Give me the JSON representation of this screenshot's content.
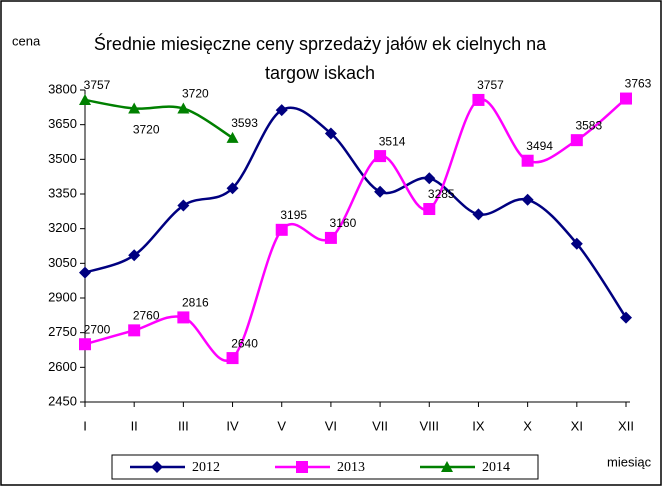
{
  "chart_data": {
    "type": "line",
    "title": "Średnie miesięczne ceny sprzedaży jałów ek cielnych na targow iskach",
    "y_label": "cena",
    "x_label": "miesiąc",
    "categories": [
      "I",
      "II",
      "III",
      "IV",
      "V",
      "VI",
      "VII",
      "VIII",
      "IX",
      "X",
      "XI",
      "XII"
    ],
    "series": [
      {
        "name": "2012",
        "color": "#000080",
        "marker": "diamond",
        "values": [
          3010,
          3085,
          3300,
          3375,
          3713,
          3612,
          3360,
          3418,
          3262,
          3325,
          3135,
          2815
        ]
      },
      {
        "name": "2013",
        "color": "#ff00ff",
        "marker": "square",
        "values": [
          2700,
          2760,
          2816,
          2640,
          3195,
          3160,
          3514,
          3285,
          3757,
          3494,
          3583,
          3763
        ]
      },
      {
        "name": "2014",
        "color": "#008000",
        "marker": "triangle",
        "values": [
          3757,
          3720,
          3720,
          3593,
          null,
          null,
          null,
          null,
          null,
          null,
          null,
          null
        ],
        "value_labels": [
          "3757",
          "3720",
          "3720",
          "3593",
          null,
          null,
          null,
          null,
          null,
          null,
          null,
          null
        ]
      }
    ],
    "ylim": [
      2450,
      3800
    ],
    "yticks": [
      2450,
      2600,
      2750,
      2900,
      3050,
      3200,
      3350,
      3500,
      3650,
      3800
    ],
    "legend": "bottom"
  }
}
